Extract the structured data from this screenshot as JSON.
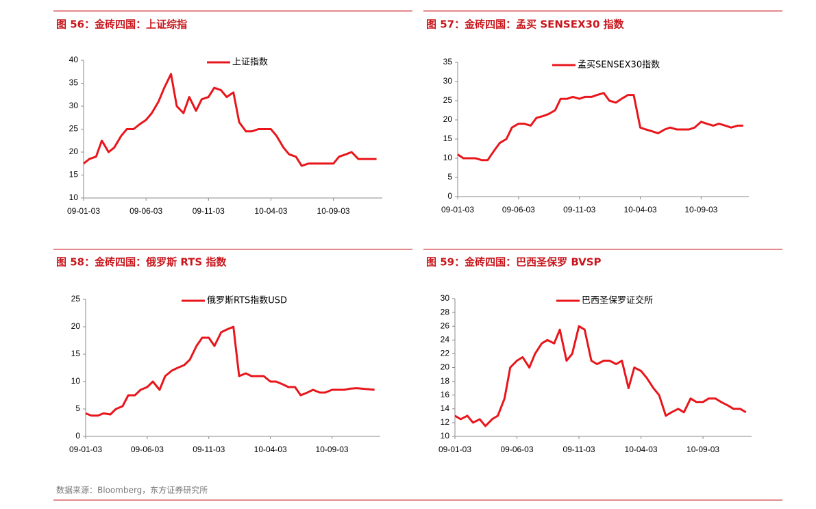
{
  "chart_data": [
    {
      "type": "line",
      "title": "图 56：金砖四国：上证综指",
      "x": [
        "09-01-03",
        "09-01-17",
        "09-02-03",
        "09-02-17",
        "09-03-03",
        "09-03-17",
        "09-04-03",
        "09-04-17",
        "09-05-03",
        "09-05-17",
        "09-06-03",
        "09-06-17",
        "09-07-03",
        "09-07-17",
        "09-08-03",
        "09-08-17",
        "09-09-03",
        "09-09-17",
        "09-10-03",
        "09-10-17",
        "09-11-03",
        "09-11-17",
        "09-12-03",
        "09-12-17",
        "10-01-03",
        "10-01-17",
        "10-02-03",
        "10-02-17",
        "10-03-03",
        "10-03-17",
        "10-04-03",
        "10-04-17",
        "10-05-03",
        "10-05-17",
        "10-06-03",
        "10-06-17",
        "10-07-03",
        "10-07-17",
        "10-08-03",
        "10-08-17",
        "10-09-03",
        "10-09-17",
        "10-10-03",
        "10-10-17",
        "10-11-03",
        "10-11-17",
        "10-12-03",
        "10-12-17"
      ],
      "series": [
        {
          "name": "上证指数",
          "color": "#e8161b",
          "values": [
            17.5,
            18.5,
            19,
            22.5,
            20,
            21,
            23.5,
            25,
            25,
            26,
            27,
            28.5,
            31,
            34,
            37,
            30,
            28.5,
            32,
            29,
            31.5,
            32,
            34,
            33.5,
            32,
            33,
            26.5,
            24.5,
            24.5,
            25,
            25,
            25,
            23.5,
            21,
            19.5,
            19,
            17,
            17.5,
            17.5,
            17.5,
            17.5,
            17.5,
            19,
            19.5,
            20,
            18.5,
            18.5,
            18.5,
            18.5
          ]
        }
      ],
      "xlim": [
        "09-01-03",
        "10-12-31"
      ],
      "xticks": [
        "09-01-03",
        "09-06-03",
        "09-11-03",
        "10-04-03",
        "10-09-03"
      ],
      "ylim": [
        10,
        40
      ],
      "yticks": [
        10,
        15,
        20,
        25,
        30,
        35,
        40
      ]
    },
    {
      "type": "line",
      "title": "图 57：金砖四国：孟买 SENSEX30 指数",
      "x": [
        "09-01-03",
        "09-01-17",
        "09-02-03",
        "09-02-17",
        "09-03-03",
        "09-03-17",
        "09-04-03",
        "09-04-17",
        "09-05-03",
        "09-05-17",
        "09-06-03",
        "09-06-17",
        "09-07-03",
        "09-07-17",
        "09-08-03",
        "09-08-17",
        "09-09-03",
        "09-09-17",
        "09-10-03",
        "09-10-17",
        "09-11-03",
        "09-11-17",
        "09-12-03",
        "09-12-17",
        "10-01-03",
        "10-01-17",
        "10-02-03",
        "10-02-17",
        "10-03-03",
        "10-03-17",
        "10-04-03",
        "10-04-17",
        "10-05-03",
        "10-05-17",
        "10-06-03",
        "10-06-17",
        "10-07-03",
        "10-07-17",
        "10-08-03",
        "10-08-17",
        "10-09-03",
        "10-09-17",
        "10-10-03",
        "10-10-17",
        "10-11-03",
        "10-11-17",
        "10-12-03",
        "10-12-17"
      ],
      "series": [
        {
          "name": "孟买SENSEX30指数",
          "color": "#e8161b",
          "values": [
            11,
            10,
            10,
            10,
            9.5,
            9.5,
            12,
            14,
            15,
            18,
            19,
            19,
            18.5,
            20.5,
            21,
            21.5,
            22.5,
            25.5,
            25.5,
            26,
            25.5,
            26,
            26,
            26.5,
            27,
            25,
            24.5,
            25.5,
            26.5,
            26.5,
            18,
            17.5,
            17,
            16.5,
            17.5,
            18,
            17.5,
            17.5,
            17.5,
            18,
            19.5,
            19,
            18.5,
            19,
            18.5,
            18,
            18.5,
            18.5
          ]
        }
      ],
      "xlim": [
        "09-01-03",
        "10-12-31"
      ],
      "xticks": [
        "09-01-03",
        "09-06-03",
        "09-11-03",
        "10-04-03",
        "10-09-03"
      ],
      "ylim": [
        0,
        35
      ],
      "yticks": [
        0,
        5,
        10,
        15,
        20,
        25,
        30,
        35
      ]
    },
    {
      "type": "line",
      "title": "图 58：金砖四国：俄罗斯 RTS 指数",
      "x": [
        "09-01-03",
        "09-01-17",
        "09-02-03",
        "09-02-17",
        "09-03-03",
        "09-03-17",
        "09-04-03",
        "09-04-17",
        "09-05-03",
        "09-05-17",
        "09-06-03",
        "09-06-17",
        "09-07-03",
        "09-07-17",
        "09-08-03",
        "09-08-17",
        "09-09-03",
        "09-09-17",
        "09-10-03",
        "09-10-17",
        "09-11-03",
        "09-11-17",
        "09-12-03",
        "09-12-17",
        "10-01-03",
        "10-01-17",
        "10-02-03",
        "10-02-17",
        "10-03-03",
        "10-03-17",
        "10-04-03",
        "10-04-17",
        "10-05-03",
        "10-05-17",
        "10-06-03",
        "10-06-17",
        "10-07-03",
        "10-07-17",
        "10-08-03",
        "10-08-17",
        "10-09-03",
        "10-09-17",
        "10-10-03",
        "10-10-17",
        "10-11-03",
        "10-11-17",
        "10-12-03",
        "10-12-17"
      ],
      "series": [
        {
          "name": "俄罗斯RTS指数USD",
          "color": "#e8161b",
          "values": [
            4.2,
            3.8,
            3.8,
            4.2,
            4,
            5,
            5.5,
            7.5,
            7.5,
            8.5,
            9,
            10,
            8.5,
            11,
            12,
            12.5,
            13,
            14,
            16.5,
            18,
            18,
            16.5,
            19,
            19.5,
            20,
            11,
            11.5,
            11,
            11,
            11,
            10,
            10,
            9.5,
            9,
            9,
            7.5,
            8,
            8.5,
            8,
            8,
            8.5,
            8.5,
            8.5,
            8.7,
            8.8,
            8.7,
            8.6,
            8.5
          ]
        }
      ],
      "xlim": [
        "09-01-03",
        "10-12-31"
      ],
      "xticks": [
        "09-01-03",
        "09-06-03",
        "09-11-03",
        "10-04-03",
        "10-09-03"
      ],
      "ylim": [
        0,
        25
      ],
      "yticks": [
        0,
        5,
        10,
        15,
        20,
        25
      ]
    },
    {
      "type": "line",
      "title": "图 59：金砖四国：巴西圣保罗  BVSP",
      "x": [
        "09-01-03",
        "09-01-17",
        "09-02-03",
        "09-02-17",
        "09-03-03",
        "09-03-17",
        "09-04-03",
        "09-04-17",
        "09-05-03",
        "09-05-17",
        "09-06-03",
        "09-06-17",
        "09-07-03",
        "09-07-17",
        "09-08-03",
        "09-08-17",
        "09-09-03",
        "09-09-17",
        "09-10-03",
        "09-10-17",
        "09-11-03",
        "09-11-17",
        "09-12-03",
        "09-12-17",
        "10-01-03",
        "10-01-17",
        "10-02-03",
        "10-02-17",
        "10-03-03",
        "10-03-17",
        "10-04-03",
        "10-04-17",
        "10-05-03",
        "10-05-17",
        "10-06-03",
        "10-06-17",
        "10-07-03",
        "10-07-17",
        "10-08-03",
        "10-08-17",
        "10-09-03",
        "10-09-17",
        "10-10-03",
        "10-10-17",
        "10-11-03",
        "10-11-17",
        "10-12-03",
        "10-12-17"
      ],
      "series": [
        {
          "name": "巴西圣保罗证交所",
          "color": "#e8161b",
          "values": [
            13,
            12.5,
            13,
            12,
            12.5,
            11.5,
            12.5,
            13,
            15.5,
            20,
            21,
            21.5,
            20,
            22,
            23.5,
            24,
            23.5,
            25.5,
            21,
            22,
            26,
            25.5,
            21,
            20.5,
            21,
            21,
            20.5,
            21,
            17,
            20,
            19.5,
            18.5,
            17,
            16,
            13,
            13.5,
            14,
            13.5,
            15.5,
            15,
            15,
            15.5,
            15.5,
            15,
            14.5,
            14,
            14,
            13.5
          ]
        }
      ],
      "xlim": [
        "09-01-03",
        "10-12-31"
      ],
      "xticks": [
        "09-01-03",
        "09-06-03",
        "09-11-03",
        "10-04-03",
        "10-09-03"
      ],
      "ylim": [
        10,
        30
      ],
      "yticks": [
        10,
        12,
        14,
        16,
        18,
        20,
        22,
        24,
        26,
        28,
        30
      ]
    }
  ],
  "footer": "数据来源：Bloomberg，东方证券研究所"
}
